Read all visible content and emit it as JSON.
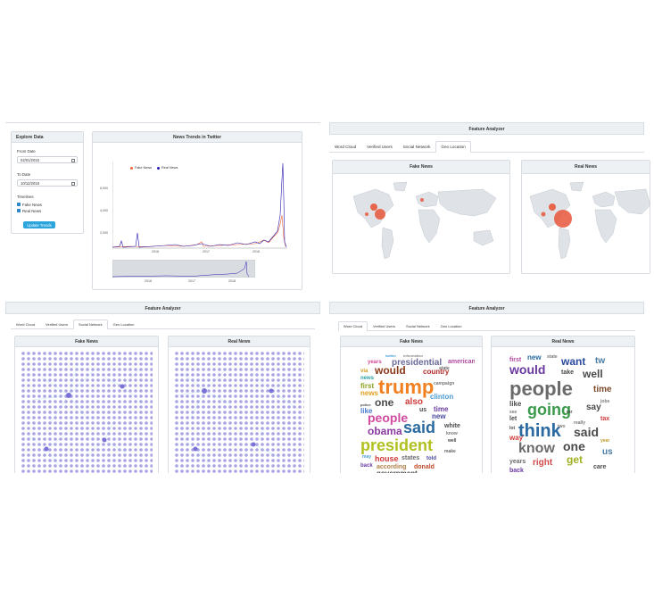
{
  "explore": {
    "title": "Explore Data",
    "from_label": "From Date",
    "from_value": "02/01/2015",
    "to_label": "To Date",
    "to_value": "10/12/2018",
    "timelines_label": "Timelines",
    "fake_label": "Fake News",
    "real_label": "Real News",
    "update_button": "Update Trends"
  },
  "trends": {
    "title": "News Trends in Twitter",
    "legend_fake": "Fake News",
    "legend_real": "Real News",
    "y_ticks": [
      "6,000",
      "4,000",
      "2,000"
    ],
    "x_ticks": [
      "2016",
      "2017",
      "2018"
    ],
    "nav_x_ticks": [
      "2016",
      "2017",
      "2018"
    ],
    "colors": {
      "fake": "#f0643c",
      "real": "#2a1bb0"
    }
  },
  "geo": {
    "title": "Feature Analyzer",
    "tabs": [
      "Word Cloud",
      "Verified Users",
      "Social Network",
      "Geo Location"
    ],
    "active_tab": "Geo Location",
    "fake_title": "Fake News",
    "real_title": "Real News"
  },
  "network": {
    "title": "Feature Analyzer",
    "tabs": [
      "Word Cloud",
      "Verified Users",
      "Social Network",
      "Geo Location"
    ],
    "active_tab": "Social Network",
    "fake_title": "Fake News",
    "real_title": "Real News"
  },
  "wordcloud": {
    "title": "Feature Analyzer",
    "tabs": [
      "Word Cloud",
      "Verified Users",
      "Social Network",
      "Geo Location"
    ],
    "active_tab": "Word Cloud",
    "fake_title": "Fake News",
    "real_title": "Real News",
    "fake_words": [
      "twitter",
      "information",
      "years",
      "presidential",
      "american",
      "via",
      "would",
      "state",
      "news",
      "country",
      "first",
      "trump",
      "campaign",
      "news",
      "one",
      "also",
      "clinton",
      "police",
      "like",
      "us",
      "time",
      "people",
      "new",
      "said",
      "white",
      "obama",
      "know",
      "president",
      "well",
      "may",
      "house",
      "states",
      "told",
      "make",
      "back",
      "according",
      "donald",
      "government"
    ],
    "real_words": [
      "first",
      "new",
      "state",
      "want",
      "tw",
      "would",
      "take",
      "well",
      "people",
      "time",
      "like",
      "jobs",
      "going",
      "see",
      "say",
      "let",
      "mr",
      "really",
      "tax",
      "lot",
      "think",
      "said",
      "way",
      "two",
      "know",
      "one",
      "year",
      "us",
      "years",
      "right",
      "get",
      "back",
      "care"
    ]
  }
}
